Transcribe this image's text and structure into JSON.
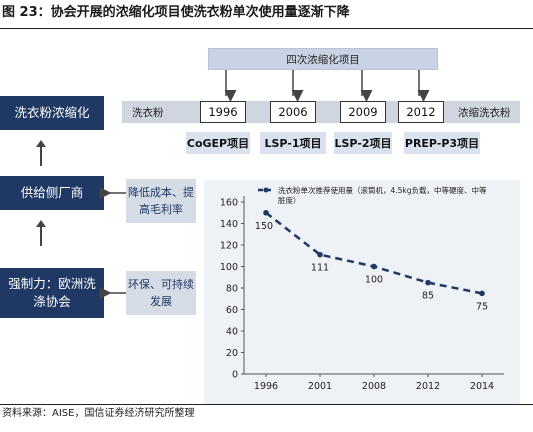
{
  "figure": {
    "title": "图 23：协会开展的浓缩化项目使洗衣粉单次使用量逐渐下降",
    "source": "资料来源：AISE，国信证券经济研究所整理"
  },
  "left_column": {
    "top": "洗衣粉浓缩化",
    "middle": "供给侧厂商",
    "bottom": "强制力：欧洲洗涤协会"
  },
  "drivers": {
    "upper": "降低成本、提高毛利率",
    "lower": "环保、可持续发展"
  },
  "timeline": {
    "header": "四次浓缩化项目",
    "start_label": "洗衣粉",
    "end_label": "浓缩洗衣粉",
    "years": [
      "1996",
      "2006",
      "2009",
      "2012"
    ],
    "projects": [
      "CoGEP项目",
      "LSP-1项目",
      "LSP-2项目",
      "PREP-P3项目"
    ]
  },
  "chart_data": {
    "type": "line",
    "legend": "洗衣粉单次推荐使用量（滚筒机，4.5kg负载，中等硬度、中等脏度）",
    "categories": [
      "1996",
      "2001",
      "2008",
      "2012",
      "2014"
    ],
    "series": [
      {
        "values": [
          150,
          111,
          100,
          85,
          75
        ]
      }
    ],
    "ylim": [
      0,
      160
    ],
    "yticks": [
      0,
      20,
      40,
      60,
      80,
      100,
      120,
      140,
      160
    ],
    "line_style": "dashed",
    "color": "#1f3864",
    "grid": false
  }
}
